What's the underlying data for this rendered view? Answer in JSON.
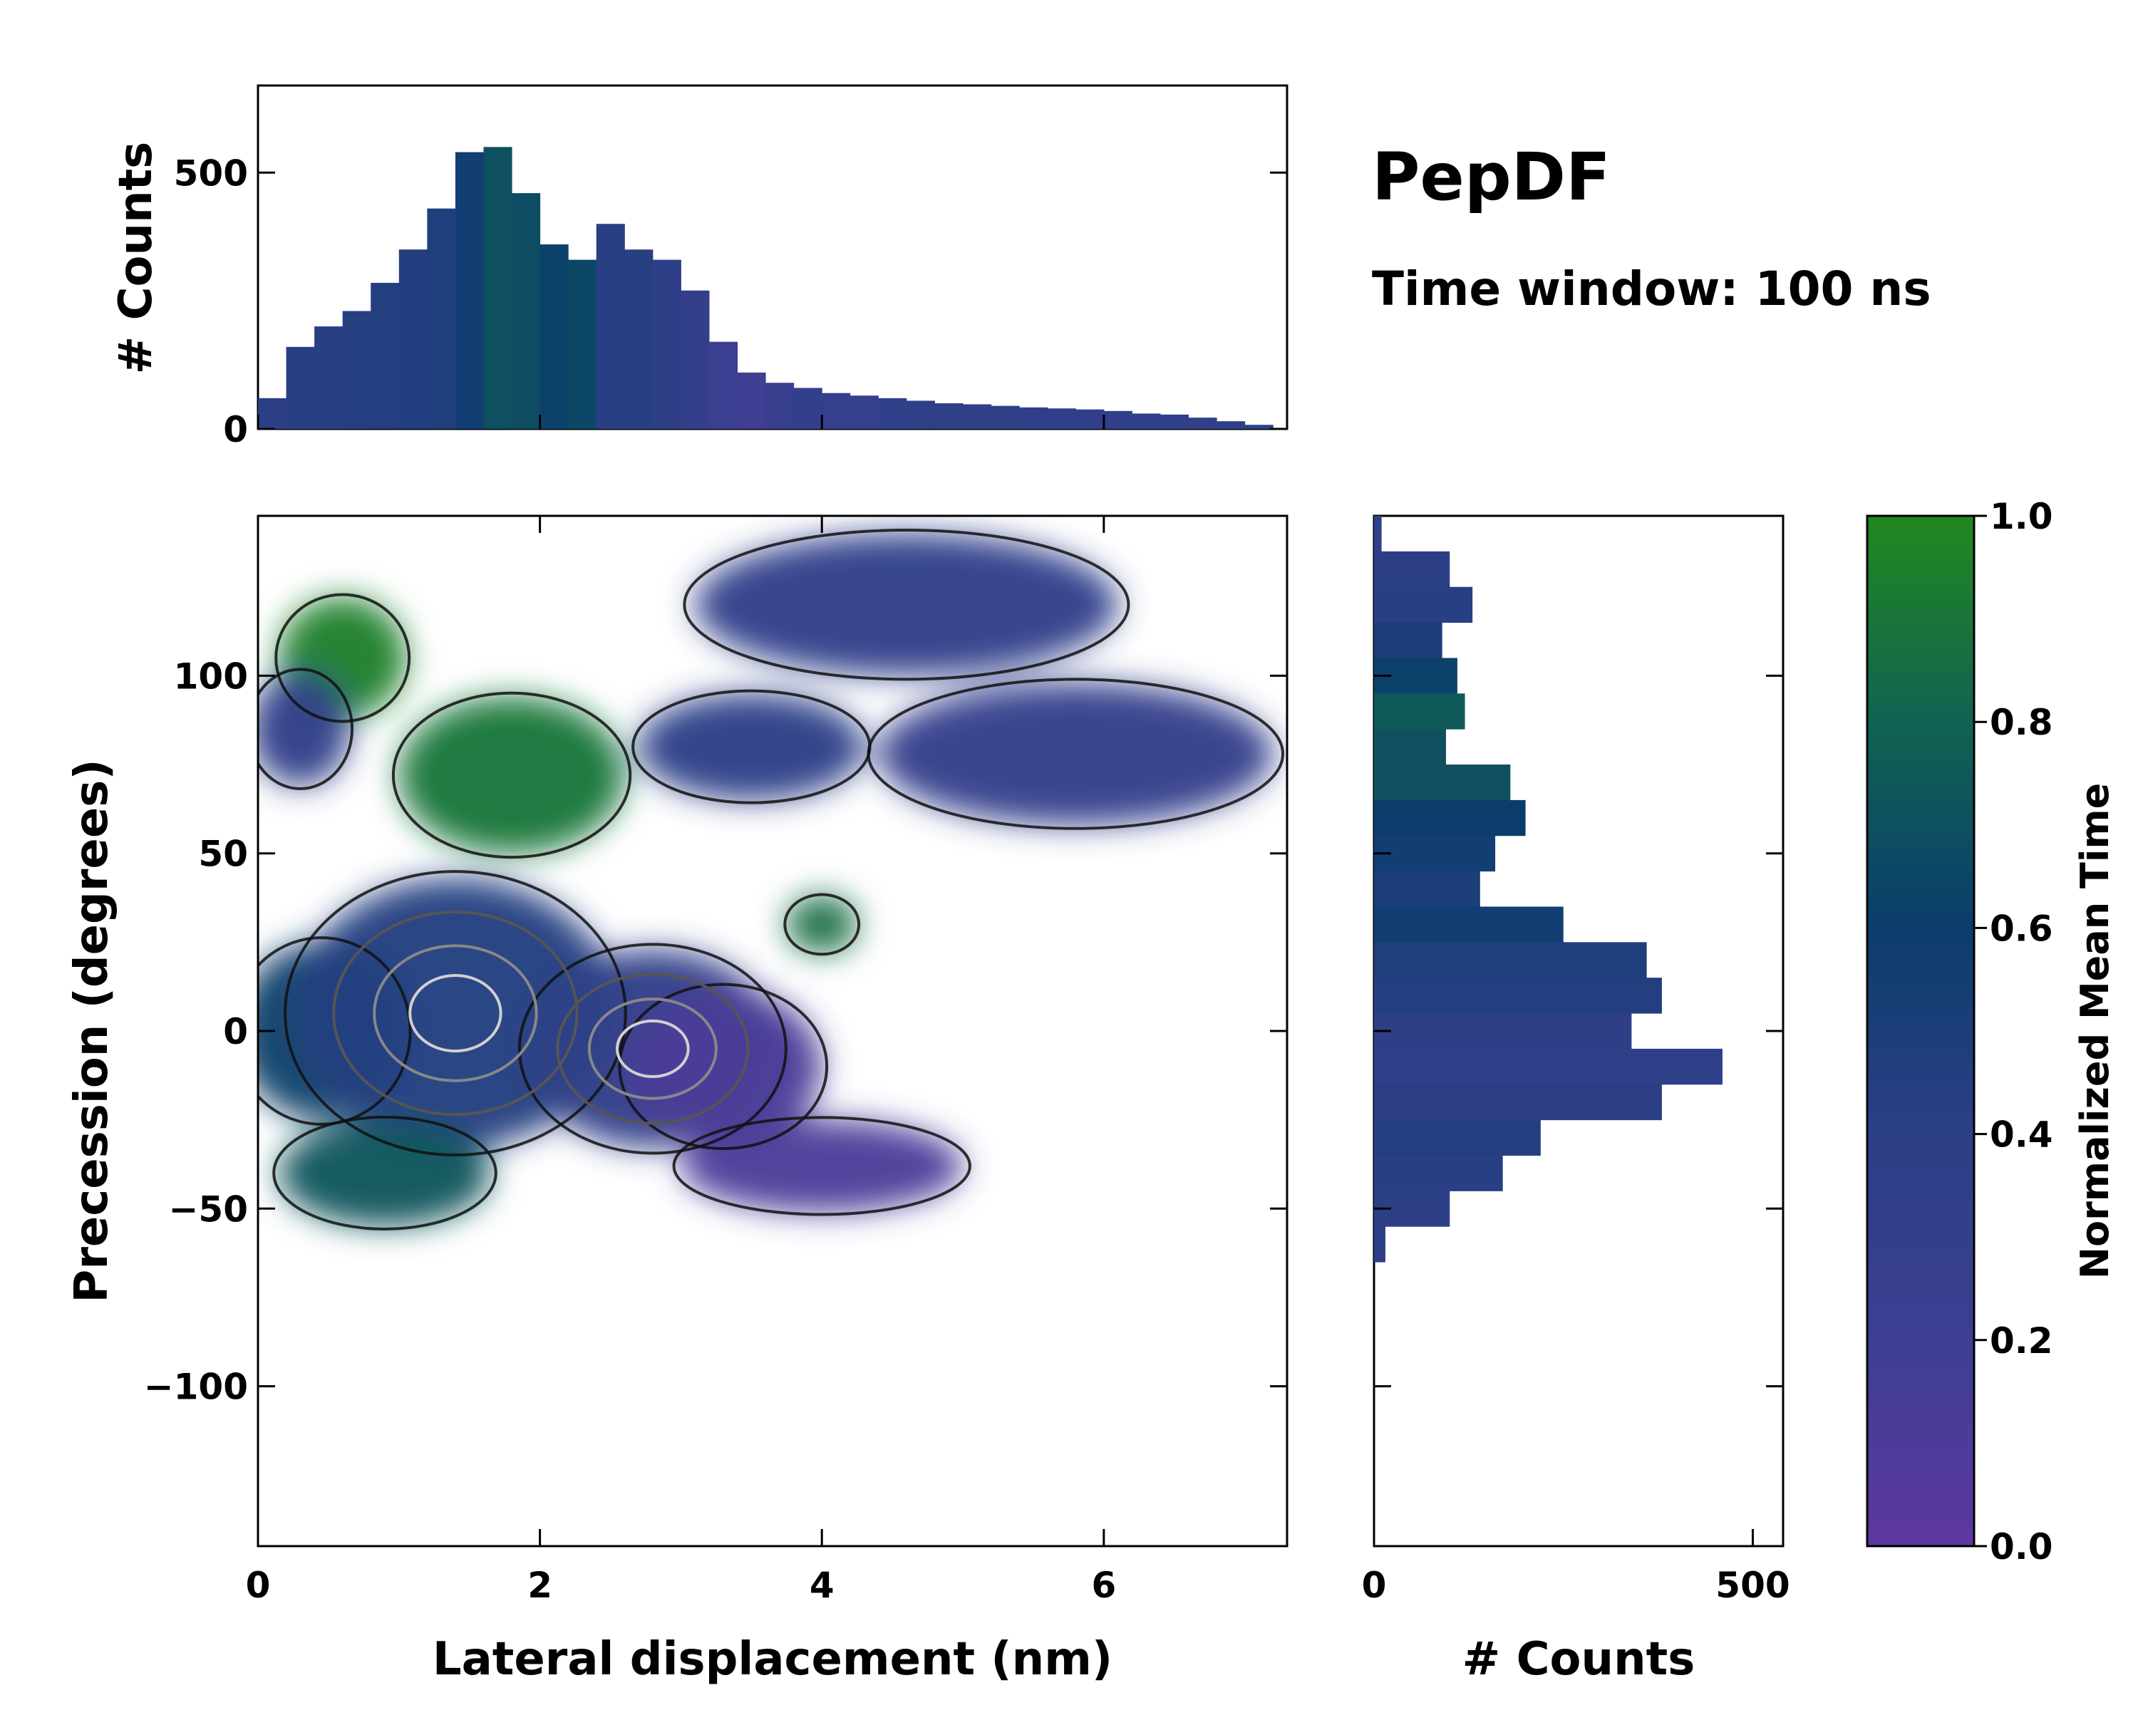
{
  "title": "PepDF",
  "subtitle": "Time window: 100 ns",
  "chart_data": {
    "type": "heatmap",
    "main": {
      "xlabel": "Lateral displacement (nm)",
      "ylabel": "Precession (degrees)",
      "xlim": [
        0,
        7.3
      ],
      "ylim": [
        -145,
        145
      ],
      "xticks": [
        0,
        2,
        4,
        6
      ],
      "xtick_labels": [
        "0",
        "2",
        "4",
        "6"
      ],
      "yticks": [
        -100,
        -50,
        0,
        50,
        100
      ],
      "ytick_labels": [
        "−100",
        "−50",
        "0",
        "50",
        "100"
      ],
      "regions": [
        {
          "name": "green-top",
          "x": 0.6,
          "y": 105,
          "rx": 0.45,
          "ry": 17,
          "value": 0.95
        },
        {
          "name": "green-mid",
          "x": 1.8,
          "y": 72,
          "rx": 0.8,
          "ry": 22,
          "value": 0.9
        },
        {
          "name": "left-band",
          "x": 0.3,
          "y": 85,
          "rx": 0.35,
          "ry": 16,
          "value": 0.38
        },
        {
          "name": "teal-left",
          "x": 0.45,
          "y": 0,
          "rx": 0.6,
          "ry": 25,
          "value": 0.62
        },
        {
          "name": "core-center",
          "x": 1.4,
          "y": 5,
          "rx": 1.15,
          "ry": 38,
          "value": 0.45
        },
        {
          "name": "core-right",
          "x": 2.8,
          "y": -5,
          "rx": 0.9,
          "ry": 28,
          "value": 0.38
        },
        {
          "name": "green-bottom",
          "x": 0.9,
          "y": -40,
          "rx": 0.75,
          "ry": 15,
          "value": 0.72
        },
        {
          "name": "purple-lobe",
          "x": 3.3,
          "y": -10,
          "rx": 0.7,
          "ry": 22,
          "value": 0.12
        },
        {
          "name": "purple-bottom",
          "x": 4.0,
          "y": -38,
          "rx": 1.0,
          "ry": 13,
          "value": 0.1
        },
        {
          "name": "blue-upper",
          "x": 4.6,
          "y": 120,
          "rx": 1.5,
          "ry": 20,
          "value": 0.35
        },
        {
          "name": "blue-right",
          "x": 5.8,
          "y": 78,
          "rx": 1.4,
          "ry": 20,
          "value": 0.33
        },
        {
          "name": "blue-mid",
          "x": 3.5,
          "y": 80,
          "rx": 0.8,
          "ry": 15,
          "value": 0.4
        },
        {
          "name": "green-small",
          "x": 4.0,
          "y": 30,
          "rx": 0.25,
          "ry": 8,
          "value": 0.85
        }
      ]
    },
    "top_histogram": {
      "ylabel": "# Counts",
      "ylim": [
        0,
        670
      ],
      "yticks": [
        0,
        500
      ],
      "ytick_labels": [
        "0",
        "500"
      ],
      "x_centers": [
        0.1,
        0.3,
        0.5,
        0.7,
        0.9,
        1.1,
        1.3,
        1.5,
        1.7,
        1.9,
        2.1,
        2.3,
        2.5,
        2.7,
        2.9,
        3.1,
        3.3,
        3.5,
        3.7,
        3.9,
        4.1,
        4.3,
        4.5,
        4.7,
        4.9,
        5.1,
        5.3,
        5.5,
        5.7,
        5.9,
        6.1,
        6.3,
        6.5,
        6.7,
        6.9,
        7.1
      ],
      "values": [
        60,
        160,
        200,
        230,
        285,
        350,
        430,
        540,
        550,
        460,
        360,
        330,
        400,
        350,
        330,
        270,
        170,
        110,
        90,
        80,
        70,
        65,
        60,
        55,
        50,
        48,
        45,
        42,
        40,
        38,
        35,
        30,
        28,
        22,
        15,
        8
      ],
      "mean_time": [
        0.4,
        0.42,
        0.42,
        0.44,
        0.45,
        0.46,
        0.48,
        0.55,
        0.7,
        0.68,
        0.62,
        0.65,
        0.42,
        0.42,
        0.38,
        0.3,
        0.22,
        0.18,
        0.25,
        0.3,
        0.28,
        0.27,
        0.35,
        0.36,
        0.36,
        0.36,
        0.36,
        0.35,
        0.35,
        0.35,
        0.35,
        0.35,
        0.35,
        0.35,
        0.35,
        0.35
      ]
    },
    "right_histogram": {
      "xlabel": "# Counts",
      "xlim": [
        0,
        540
      ],
      "xticks": [
        0,
        500
      ],
      "xtick_labels": [
        "0",
        "500"
      ],
      "y_centers": [
        140,
        130,
        120,
        110,
        100,
        90,
        80,
        70,
        60,
        50,
        40,
        30,
        20,
        10,
        0,
        -10,
        -20,
        -30,
        -40,
        -50,
        -60
      ],
      "values": [
        10,
        100,
        130,
        90,
        110,
        120,
        95,
        180,
        200,
        160,
        140,
        250,
        360,
        380,
        340,
        460,
        380,
        220,
        170,
        100,
        15
      ],
      "mean_time": [
        0.35,
        0.4,
        0.42,
        0.5,
        0.62,
        0.75,
        0.7,
        0.7,
        0.6,
        0.55,
        0.5,
        0.55,
        0.48,
        0.45,
        0.38,
        0.35,
        0.4,
        0.45,
        0.42,
        0.4,
        0.4
      ]
    },
    "colorbar": {
      "label": "Normalized Mean Time",
      "range": [
        0,
        1
      ],
      "ticks": [
        0.0,
        0.2,
        0.4,
        0.6,
        0.8,
        1.0
      ],
      "tick_labels": [
        "0.0",
        "0.2",
        "0.4",
        "0.6",
        "0.8",
        "1.0"
      ],
      "colors": [
        "#5e37a0",
        "#3c3f92",
        "#2c3f86",
        "#0b3d6c",
        "#106352",
        "#22881f"
      ]
    }
  }
}
